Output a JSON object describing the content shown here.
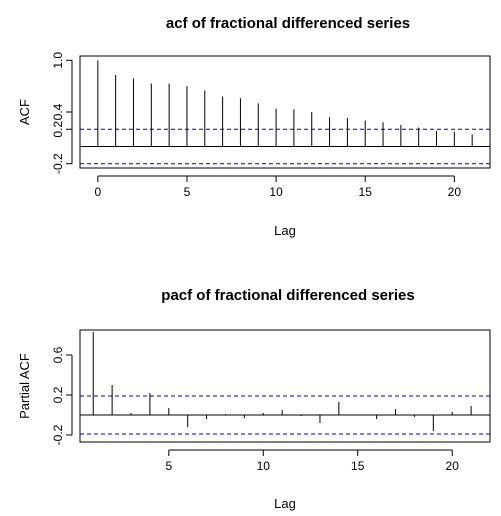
{
  "chart_data": [
    {
      "type": "acf",
      "title": "acf of fractional differenced series",
      "xlabel": "Lag",
      "ylabel": "ACF",
      "xlim": [
        -1,
        22
      ],
      "ylim": [
        -0.25,
        1.05
      ],
      "x_ticks": [
        0,
        5,
        10,
        15,
        20
      ],
      "x_tick_labels": [
        "0",
        "5",
        "10",
        "15",
        "20"
      ],
      "y_ticks": [
        -0.2,
        0.2,
        0.4,
        1.0
      ],
      "y_tick_labels": [
        "-0.2",
        "0.2",
        "0.4",
        "1.0"
      ],
      "lags": [
        0,
        1,
        2,
        3,
        4,
        5,
        6,
        7,
        8,
        9,
        10,
        11,
        12,
        13,
        14,
        15,
        16,
        17,
        18,
        19,
        20,
        21
      ],
      "values": [
        1.0,
        0.83,
        0.79,
        0.73,
        0.73,
        0.7,
        0.65,
        0.58,
        0.56,
        0.5,
        0.44,
        0.43,
        0.4,
        0.34,
        0.33,
        0.3,
        0.28,
        0.25,
        0.22,
        0.18,
        0.17,
        0.14
      ],
      "ci": 0.2,
      "ci_color": "#0000cc",
      "grid": false
    },
    {
      "type": "pacf",
      "title": "pacf of fractional differenced series",
      "xlabel": "Lag",
      "ylabel": "Partial ACF",
      "xlim": [
        0.3,
        22
      ],
      "ylim": [
        -0.27,
        0.85
      ],
      "x_ticks": [
        5,
        10,
        15,
        20
      ],
      "x_tick_labels": [
        "5",
        "10",
        "15",
        "20"
      ],
      "y_ticks": [
        -0.2,
        0.2,
        0.6
      ],
      "y_tick_labels": [
        "-0.2",
        "0.2",
        "0.6"
      ],
      "lags": [
        1,
        2,
        3,
        4,
        5,
        6,
        7,
        8,
        9,
        10,
        11,
        12,
        13,
        14,
        15,
        16,
        17,
        18,
        19,
        20,
        21
      ],
      "values": [
        0.83,
        0.3,
        0.02,
        0.22,
        0.07,
        -0.12,
        -0.04,
        0.01,
        -0.03,
        0.02,
        0.05,
        -0.01,
        -0.08,
        0.13,
        0.0,
        -0.04,
        0.06,
        -0.02,
        -0.16,
        0.03,
        0.09
      ],
      "ci": 0.19,
      "ci_color": "#0000cc",
      "grid": false
    }
  ]
}
